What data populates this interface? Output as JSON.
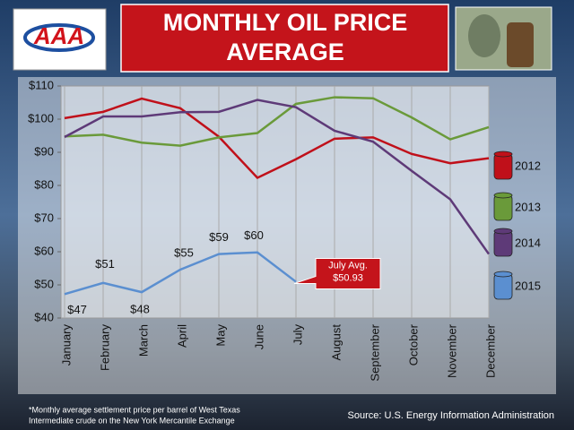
{
  "logo": "AAA",
  "chart_data": {
    "type": "line",
    "title": [
      "MONTHLY OIL PRICE",
      "AVERAGE"
    ],
    "categories": [
      "January",
      "February",
      "March",
      "April",
      "May",
      "June",
      "July",
      "August",
      "September",
      "October",
      "November",
      "December"
    ],
    "series": [
      {
        "name": "2012",
        "color": "#c0101a",
        "values": [
          100.3,
          102.2,
          106.2,
          103.3,
          94.7,
          82.3,
          87.9,
          94.1,
          94.5,
          89.5,
          86.7,
          88.2
        ]
      },
      {
        "name": "2013",
        "color": "#6a9a3a",
        "values": [
          94.8,
          95.3,
          92.9,
          92.0,
          94.5,
          95.8,
          104.6,
          106.6,
          106.3,
          100.5,
          93.9,
          97.6
        ]
      },
      {
        "name": "2014",
        "color": "#5e3a78",
        "values": [
          94.6,
          100.8,
          100.8,
          102.1,
          102.2,
          105.8,
          103.6,
          96.5,
          93.2,
          84.4,
          75.8,
          59.3
        ]
      },
      {
        "name": "2015",
        "color": "#5b8fd0",
        "values": [
          47.2,
          50.6,
          47.8,
          54.6,
          59.3,
          59.8,
          50.93,
          null,
          null,
          null,
          null,
          null
        ],
        "value_labels": [
          "$47",
          "$51",
          "$48",
          "$55",
          "$59",
          "$60",
          "$50.93",
          null,
          null,
          null,
          null,
          null
        ]
      }
    ],
    "annotation": "July Avg.",
    "ylim": [
      40,
      110
    ],
    "yticks": [
      {
        "value": 40,
        "label": "$40"
      },
      {
        "value": 50,
        "label": "$50"
      },
      {
        "value": 60,
        "label": "$60"
      },
      {
        "value": 70,
        "label": "$70"
      },
      {
        "value": 80,
        "label": "$80"
      },
      {
        "value": 90,
        "label": "$90"
      },
      {
        "value": 100,
        "label": "$100"
      },
      {
        "value": 110,
        "label": "$110"
      }
    ],
    "grid": "x",
    "legend": "right",
    "footnote": [
      "*Monthly average settlement price per barrel of West Texas",
      "Intermediate crude on the New York Mercantile Exchange"
    ],
    "source": "Source: U.S. Energy Information Administration"
  }
}
